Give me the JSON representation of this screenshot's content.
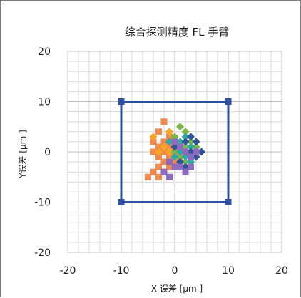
{
  "chart_data": {
    "type": "scatter",
    "title": "综合探测精度 FL 手臂",
    "xlabel": "X 误差 [μm ]",
    "ylabel": "Y误差 [μm ]",
    "xlim": [
      -20,
      20
    ],
    "ylim": [
      -20,
      20
    ],
    "x_ticks": [
      "-20",
      "-10",
      "0",
      "10",
      "20"
    ],
    "y_ticks": [
      "20",
      "10",
      "0",
      "-10",
      "-20"
    ],
    "grid": true,
    "minor_grid": true,
    "tolerance_box": {
      "color": "#2e4fa0",
      "x": [
        -10,
        10,
        10,
        -10
      ],
      "y": [
        10,
        10,
        -10,
        -10
      ]
    },
    "series": [
      {
        "color": "#f08a4b",
        "marker": "square",
        "points": [
          [
            -2,
            6
          ],
          [
            -3,
            4
          ],
          [
            -1,
            3
          ],
          [
            -2,
            2
          ],
          [
            -4,
            2
          ],
          [
            -3,
            1
          ],
          [
            -1,
            1
          ],
          [
            -2,
            0
          ],
          [
            -4,
            0
          ],
          [
            0,
            0
          ],
          [
            -3,
            -1
          ],
          [
            -1,
            -1
          ],
          [
            -2,
            -2
          ],
          [
            0,
            -2
          ],
          [
            -3,
            -3
          ],
          [
            -1,
            -3
          ],
          [
            -2,
            -4
          ],
          [
            -4,
            -4
          ],
          [
            -3,
            -5
          ],
          [
            -5,
            -5
          ],
          [
            0,
            2
          ],
          [
            1,
            -1
          ]
        ]
      },
      {
        "color": "#f5a623",
        "marker": "diamond",
        "points": [
          [
            -4,
            3
          ],
          [
            -1,
            4
          ],
          [
            0,
            3
          ],
          [
            -2,
            1
          ],
          [
            -1,
            0
          ],
          [
            0,
            -1
          ],
          [
            1,
            1
          ],
          [
            -3,
            0
          ]
        ]
      },
      {
        "color": "#7ab648",
        "marker": "diamond",
        "points": [
          [
            1,
            5
          ],
          [
            2,
            4
          ],
          [
            0,
            3
          ],
          [
            1,
            2
          ],
          [
            3,
            2
          ],
          [
            2,
            1
          ],
          [
            0,
            0
          ],
          [
            3,
            0
          ],
          [
            1,
            -1
          ],
          [
            2,
            -2
          ],
          [
            4,
            1
          ]
        ]
      },
      {
        "color": "#2eaaa0",
        "marker": "diamond",
        "points": [
          [
            2,
            3
          ],
          [
            3,
            1
          ],
          [
            1,
            0
          ],
          [
            2,
            -1
          ],
          [
            3,
            -2
          ],
          [
            0,
            -1
          ],
          [
            4,
            0
          ],
          [
            1,
            2
          ],
          [
            -1,
            2
          ]
        ]
      },
      {
        "color": "#2f5597",
        "marker": "diamond",
        "points": [
          [
            3,
            3
          ],
          [
            4,
            2
          ],
          [
            2,
            2
          ],
          [
            3,
            0
          ],
          [
            4,
            -1
          ],
          [
            2,
            -3
          ],
          [
            1,
            -2
          ],
          [
            0,
            1
          ],
          [
            5,
            0
          ],
          [
            1,
            -3
          ]
        ]
      },
      {
        "color": "#8e6bc1",
        "marker": "square",
        "points": [
          [
            -1,
            -2
          ],
          [
            0,
            -3
          ],
          [
            1,
            -3
          ],
          [
            2,
            -4
          ],
          [
            -2,
            -4
          ],
          [
            3,
            -1
          ],
          [
            2,
            0
          ],
          [
            1,
            1
          ],
          [
            0,
            2
          ],
          [
            -1,
            -5
          ],
          [
            3,
            -3
          ],
          [
            4,
            0
          ]
        ]
      }
    ]
  }
}
